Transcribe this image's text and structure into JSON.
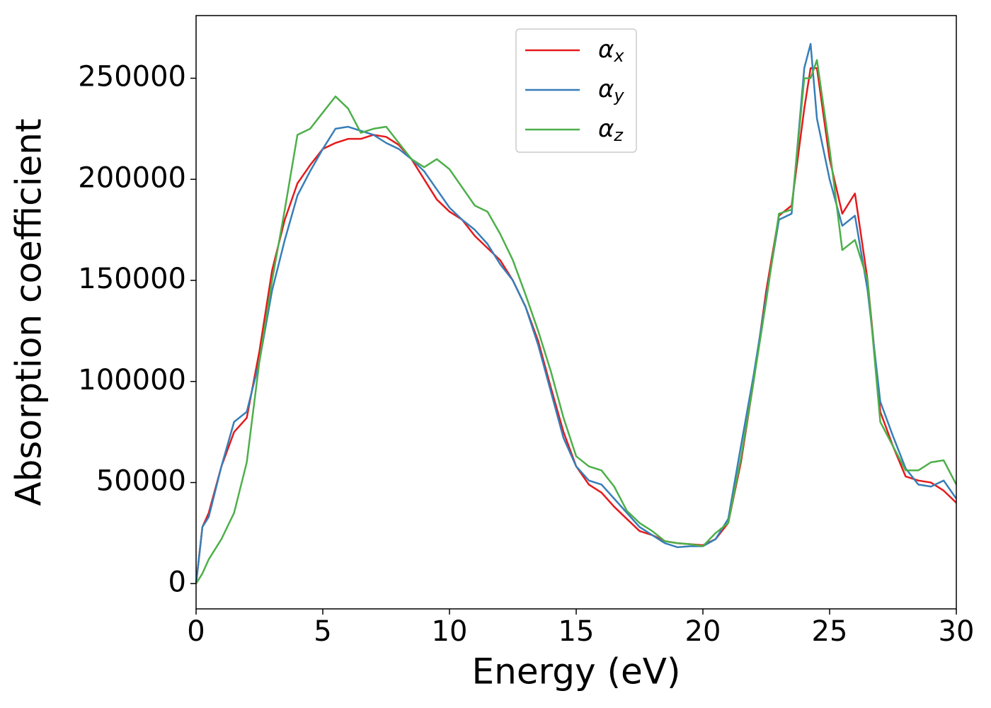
{
  "chart_data": {
    "type": "line",
    "xlabel": "Energy (eV)",
    "ylabel": "Absorption coefficient",
    "x": [
      0,
      0.25,
      0.5,
      1,
      1.5,
      2,
      2.5,
      3,
      3.5,
      4,
      4.5,
      5,
      5.5,
      6,
      6.5,
      7,
      7.5,
      8,
      8.5,
      9,
      9.5,
      10,
      10.5,
      11,
      11.5,
      12,
      12.5,
      13,
      13.5,
      14,
      14.5,
      15,
      15.5,
      16,
      16.5,
      17,
      17.5,
      18,
      18.5,
      19,
      19.5,
      20,
      20.5,
      21,
      21.5,
      22,
      22.5,
      23,
      23.5,
      24,
      24.25,
      24.5,
      25,
      25.5,
      26,
      26.5,
      27,
      27.5,
      28,
      28.5,
      29,
      29.5,
      30
    ],
    "series": [
      {
        "name": "αx",
        "color": "#e41a1c",
        "values": [
          0,
          28000,
          35000,
          58000,
          75000,
          82000,
          115000,
          155000,
          180000,
          198000,
          207000,
          215000,
          218000,
          220000,
          220000,
          222000,
          221000,
          217000,
          210000,
          200000,
          190000,
          184000,
          180000,
          172000,
          166000,
          160000,
          150000,
          137000,
          120000,
          97000,
          75000,
          58000,
          49000,
          45000,
          38000,
          32000,
          26000,
          24000,
          21000,
          20000,
          19500,
          19000,
          22000,
          30000,
          60000,
          100000,
          145000,
          182000,
          187000,
          235000,
          255000,
          255000,
          210000,
          183000,
          193000,
          150000,
          85000,
          68000,
          53000,
          51000,
          50000,
          46000,
          40000
        ]
      },
      {
        "name": "αy",
        "color": "#377eb8",
        "values": [
          0,
          28000,
          33000,
          58000,
          80000,
          85000,
          110000,
          145000,
          170000,
          192000,
          204000,
          215000,
          225000,
          226000,
          224000,
          222000,
          218000,
          215000,
          210000,
          204000,
          195000,
          186000,
          180000,
          175000,
          168000,
          158000,
          150000,
          137000,
          118000,
          95000,
          72000,
          58000,
          51000,
          49000,
          42000,
          35000,
          28000,
          24000,
          20000,
          18000,
          18500,
          18500,
          22000,
          32000,
          68000,
          103000,
          142000,
          180000,
          183000,
          255000,
          267000,
          230000,
          200000,
          177000,
          182000,
          145000,
          90000,
          73000,
          57000,
          49000,
          48000,
          51000,
          42000
        ]
      },
      {
        "name": "αz",
        "color": "#4daf4a",
        "values": [
          0,
          5000,
          12000,
          22000,
          35000,
          60000,
          110000,
          150000,
          185000,
          222000,
          225000,
          233000,
          241000,
          235000,
          223000,
          225000,
          226000,
          218000,
          210000,
          206000,
          210000,
          205000,
          196000,
          187000,
          184000,
          173000,
          160000,
          143000,
          125000,
          105000,
          82000,
          63000,
          58000,
          56000,
          48000,
          36000,
          30000,
          26000,
          21000,
          20000,
          19500,
          18500,
          25000,
          30000,
          62000,
          100000,
          140000,
          183000,
          185000,
          250000,
          250000,
          259000,
          215000,
          165000,
          170000,
          150000,
          80000,
          68000,
          56000,
          56000,
          60000,
          61000,
          49000
        ]
      }
    ],
    "xlim": [
      0,
      30
    ],
    "xticks": [
      0,
      5,
      10,
      15,
      20,
      25,
      30
    ],
    "ylim": [
      -12500,
      281000
    ],
    "yticks": [
      0,
      50000,
      100000,
      150000,
      200000,
      250000
    ],
    "legend": "upper center",
    "grid": false
  }
}
